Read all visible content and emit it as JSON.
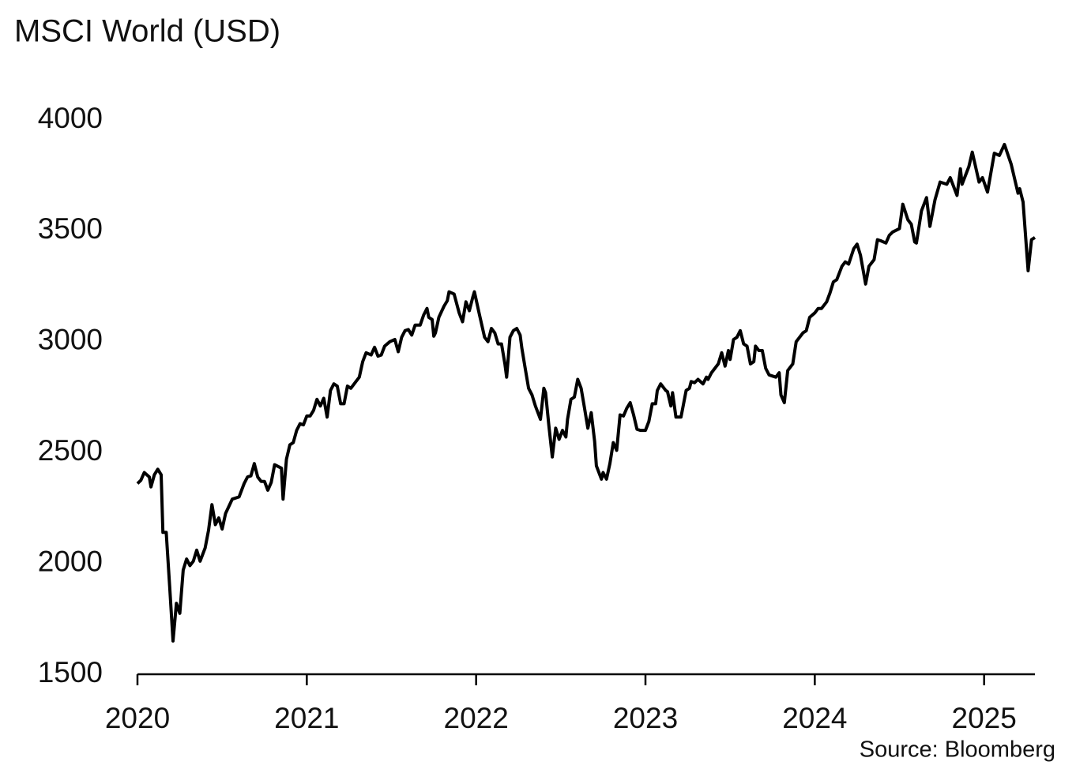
{
  "chart_data": {
    "type": "line",
    "title": "MSCI World (USD)",
    "source": "Source: Bloomberg",
    "color": "#000000",
    "grid": false,
    "xlim": [
      2020,
      2025.3
    ],
    "xticks": [
      2020,
      2021,
      2022,
      2023,
      2024,
      2025
    ],
    "ylim": [
      1500,
      4000
    ],
    "yticks": [
      1500,
      2000,
      2500,
      3000,
      3500,
      4000
    ],
    "x": [
      2020.0,
      2020.02,
      2020.04,
      2020.07,
      2020.08,
      2020.1,
      2020.12,
      2020.14,
      2020.15,
      2020.17,
      2020.19,
      2020.21,
      2020.23,
      2020.25,
      2020.27,
      2020.29,
      2020.31,
      2020.33,
      2020.35,
      2020.37,
      2020.4,
      2020.42,
      2020.44,
      2020.46,
      2020.48,
      2020.5,
      2020.52,
      2020.56,
      2020.6,
      2020.63,
      2020.65,
      2020.67,
      2020.69,
      2020.71,
      2020.73,
      2020.75,
      2020.77,
      2020.79,
      2020.81,
      2020.85,
      2020.86,
      2020.88,
      2020.9,
      2020.92,
      2020.94,
      2020.96,
      2020.98,
      2021.0,
      2021.02,
      2021.04,
      2021.06,
      2021.08,
      2021.1,
      2021.12,
      2021.14,
      2021.16,
      2021.18,
      2021.2,
      2021.22,
      2021.24,
      2021.26,
      2021.29,
      2021.31,
      2021.33,
      2021.35,
      2021.38,
      2021.4,
      2021.42,
      2021.44,
      2021.46,
      2021.49,
      2021.52,
      2021.54,
      2021.56,
      2021.58,
      2021.6,
      2021.62,
      2021.64,
      2021.67,
      2021.69,
      2021.71,
      2021.72,
      2021.74,
      2021.75,
      2021.76,
      2021.78,
      2021.81,
      2021.83,
      2021.84,
      2021.87,
      2021.9,
      2021.92,
      2021.94,
      2021.96,
      2021.98,
      2021.99,
      2022.02,
      2022.05,
      2022.07,
      2022.09,
      2022.11,
      2022.13,
      2022.15,
      2022.17,
      2022.18,
      2022.2,
      2022.22,
      2022.24,
      2022.26,
      2022.27,
      2022.29,
      2022.31,
      2022.33,
      2022.35,
      2022.38,
      2022.4,
      2022.41,
      2022.43,
      2022.45,
      2022.47,
      2022.49,
      2022.51,
      2022.53,
      2022.54,
      2022.56,
      2022.58,
      2022.6,
      2022.62,
      2022.64,
      2022.66,
      2022.68,
      2022.7,
      2022.71,
      2022.74,
      2022.75,
      2022.77,
      2022.79,
      2022.81,
      2022.83,
      2022.85,
      2022.87,
      2022.89,
      2022.91,
      2022.93,
      2022.95,
      2022.97,
      2022.99,
      2023.0,
      2023.02,
      2023.04,
      2023.06,
      2023.07,
      2023.09,
      2023.12,
      2023.13,
      2023.15,
      2023.16,
      2023.18,
      2023.21,
      2023.22,
      2023.24,
      2023.26,
      2023.27,
      2023.29,
      2023.31,
      2023.34,
      2023.36,
      2023.37,
      2023.39,
      2023.41,
      2023.43,
      2023.45,
      2023.47,
      2023.49,
      2023.5,
      2023.52,
      2023.54,
      2023.56,
      2023.58,
      2023.6,
      2023.62,
      2023.64,
      2023.65,
      2023.67,
      2023.69,
      2023.71,
      2023.73,
      2023.75,
      2023.77,
      2023.79,
      2023.8,
      2023.82,
      2023.84,
      2023.86,
      2023.87,
      2023.89,
      2023.93,
      2023.95,
      2023.97,
      2024.0,
      2024.02,
      2024.04,
      2024.07,
      2024.09,
      2024.11,
      2024.13,
      2024.16,
      2024.18,
      2024.2,
      2024.23,
      2024.25,
      2024.27,
      2024.3,
      2024.32,
      2024.35,
      2024.37,
      2024.39,
      2024.42,
      2024.44,
      2024.46,
      2024.5,
      2024.52,
      2024.55,
      2024.57,
      2024.59,
      2024.6,
      2024.63,
      2024.66,
      2024.68,
      2024.71,
      2024.74,
      2024.78,
      2024.8,
      2024.84,
      2024.86,
      2024.87,
      2024.91,
      2024.93,
      2024.97,
      2024.99,
      2025.02,
      2025.06,
      2025.09,
      2025.12,
      2025.16,
      2025.2,
      2025.21,
      2025.23,
      2025.26,
      2025.28,
      2025.3
    ],
    "values": [
      2360,
      2375,
      2410,
      2390,
      2345,
      2400,
      2425,
      2400,
      2140,
      2140,
      1900,
      1650,
      1820,
      1775,
      1970,
      2020,
      1990,
      2010,
      2060,
      2010,
      2070,
      2150,
      2265,
      2175,
      2205,
      2155,
      2225,
      2290,
      2300,
      2360,
      2390,
      2395,
      2450,
      2390,
      2370,
      2370,
      2330,
      2365,
      2445,
      2430,
      2290,
      2470,
      2535,
      2545,
      2600,
      2630,
      2625,
      2665,
      2665,
      2690,
      2740,
      2710,
      2745,
      2660,
      2780,
      2810,
      2800,
      2720,
      2720,
      2800,
      2790,
      2820,
      2840,
      2910,
      2950,
      2940,
      2975,
      2935,
      2940,
      2980,
      3000,
      3010,
      2955,
      3020,
      3050,
      3055,
      3030,
      3075,
      3075,
      3120,
      3150,
      3110,
      3100,
      3025,
      3040,
      3110,
      3160,
      3185,
      3225,
      3215,
      3130,
      3090,
      3180,
      3140,
      3200,
      3225,
      3120,
      3020,
      3000,
      3060,
      3040,
      2990,
      2990,
      2900,
      2840,
      3020,
      3050,
      3060,
      3030,
      2970,
      2880,
      2790,
      2760,
      2710,
      2650,
      2790,
      2770,
      2620,
      2480,
      2610,
      2560,
      2600,
      2570,
      2650,
      2740,
      2750,
      2830,
      2790,
      2700,
      2610,
      2680,
      2550,
      2440,
      2380,
      2410,
      2380,
      2450,
      2545,
      2510,
      2670,
      2665,
      2700,
      2725,
      2670,
      2605,
      2600,
      2600,
      2600,
      2640,
      2720,
      2720,
      2780,
      2810,
      2780,
      2775,
      2710,
      2770,
      2660,
      2660,
      2700,
      2780,
      2790,
      2820,
      2815,
      2830,
      2810,
      2840,
      2830,
      2860,
      2880,
      2900,
      2950,
      2890,
      2960,
      2920,
      3010,
      3020,
      3050,
      2990,
      2980,
      2900,
      2910,
      2980,
      2960,
      2960,
      2880,
      2850,
      2845,
      2840,
      2860,
      2760,
      2725,
      2870,
      2890,
      2900,
      3000,
      3040,
      3050,
      3110,
      3130,
      3150,
      3150,
      3180,
      3220,
      3270,
      3280,
      3340,
      3360,
      3350,
      3420,
      3440,
      3390,
      3260,
      3340,
      3370,
      3460,
      3455,
      3445,
      3480,
      3495,
      3510,
      3620,
      3550,
      3530,
      3450,
      3445,
      3590,
      3650,
      3520,
      3640,
      3720,
      3710,
      3740,
      3660,
      3780,
      3710,
      3790,
      3855,
      3720,
      3740,
      3675,
      3850,
      3840,
      3890,
      3800,
      3670,
      3690,
      3630,
      3320,
      3460,
      3470
    ]
  }
}
